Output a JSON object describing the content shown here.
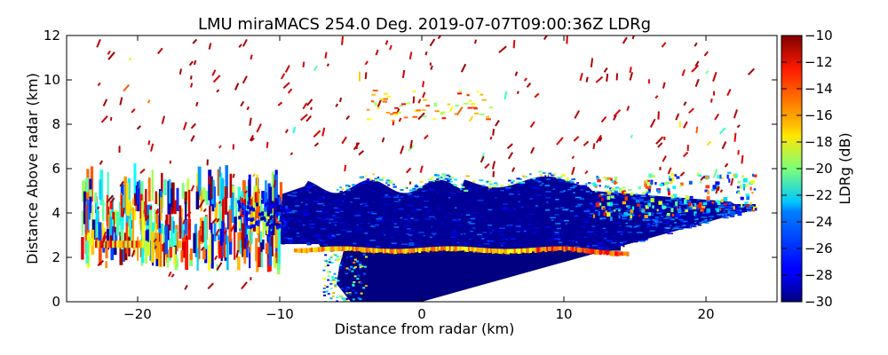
{
  "chart_data": {
    "type": "heatmap",
    "title": "LMU miraMACS 254.0 Deg. 2019-07-07T09:00:36Z  LDRg",
    "xlabel": "Distance from radar (km)",
    "ylabel": "Distance Above radar  (km)",
    "xlim": [
      -25,
      25
    ],
    "ylim": [
      0,
      12
    ],
    "xticks": [
      "−20",
      "−10",
      "0",
      "10",
      "20"
    ],
    "yticks": [
      "0",
      "2",
      "4",
      "6",
      "8",
      "10",
      "12"
    ],
    "colorbar": {
      "label": "LDRg (dB)",
      "range": [
        -30,
        -10
      ],
      "ticks": [
        "−30",
        "−28",
        "−26",
        "−24",
        "−22",
        "−20",
        "−18",
        "−16",
        "−14",
        "−12",
        "−10"
      ],
      "colormap": "jet"
    },
    "regions": [
      {
        "name": "cloud-body",
        "x": [
          -10,
          22
        ],
        "y": [
          2.3,
          5.5
        ],
        "ldr_db": -29
      },
      {
        "name": "melting-layer",
        "x": [
          -8,
          14
        ],
        "y": [
          2.2,
          2.5
        ],
        "ldr_db": -17
      },
      {
        "name": "low-echo-near-radar",
        "x": [
          -6,
          15
        ],
        "y": [
          0,
          2.2
        ],
        "ldr_db": -30
      },
      {
        "name": "scattered-upper-returns",
        "x": [
          -22,
          22
        ],
        "y": [
          6,
          12
        ],
        "ldr_db": -11
      },
      {
        "name": "left-noisy-edge",
        "x": [
          -24,
          -10
        ],
        "y": [
          1.5,
          5
        ],
        "ldr_db": -20
      }
    ],
    "grid": false
  }
}
